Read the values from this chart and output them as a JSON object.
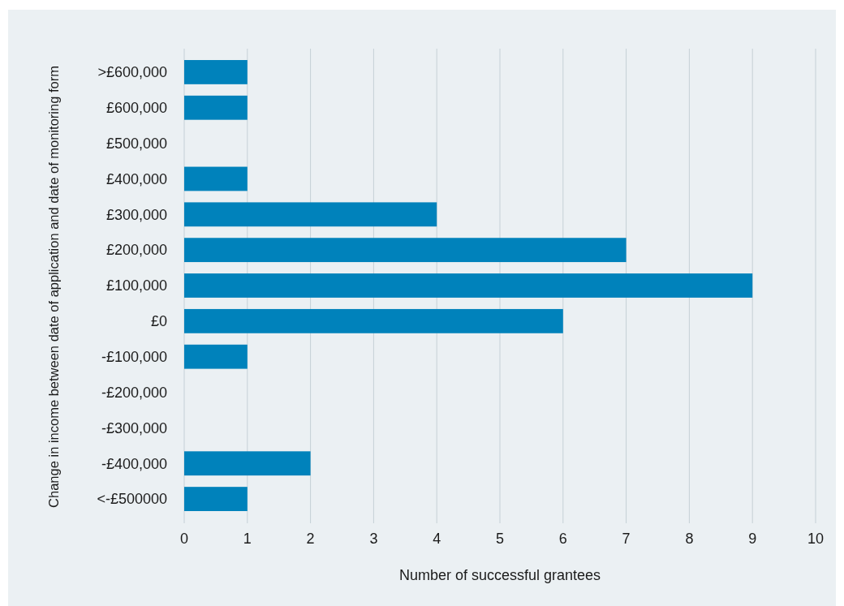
{
  "chart_data": {
    "type": "bar",
    "orientation": "horizontal",
    "xlabel": "Number of successful grantees",
    "ylabel": "Change in income between date of application and date of monitoring form",
    "categories": [
      ">£600,000",
      "£600,000",
      "£500,000",
      "£400,000",
      "£300,000",
      "£200,000",
      "£100,000",
      "£0",
      "-£100,000",
      "-£200,000",
      "-£300,000",
      "-£400,000",
      "<-£500000"
    ],
    "values": [
      1,
      1,
      0,
      1,
      4,
      7,
      9,
      6,
      1,
      0,
      0,
      2,
      1
    ],
    "color": "#0082bb",
    "xlim": [
      0,
      10
    ],
    "xticks": [
      0,
      1,
      2,
      3,
      4,
      5,
      6,
      7,
      8,
      9,
      10
    ],
    "grid": "x"
  }
}
